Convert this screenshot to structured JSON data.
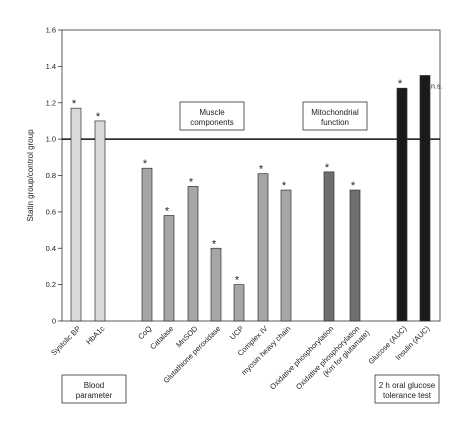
{
  "chart_data": {
    "type": "bar",
    "ylabel": "Statin group/control group",
    "ylim": [
      0,
      1.6
    ],
    "yticks": [
      "0",
      "0.2",
      "0.4",
      "0.6",
      "0.8",
      "1.0",
      "1.2",
      "1.4",
      "1.6"
    ],
    "reference_line": 1.0,
    "categories": [
      {
        "label": "Systolic BP",
        "value": 1.17,
        "mark": "*",
        "color": "#d9d9d9"
      },
      {
        "label": "HbA1c",
        "value": 1.1,
        "mark": "*",
        "color": "#d9d9d9"
      },
      {
        "label": "CoQ",
        "value": 0.84,
        "mark": "*",
        "color": "#a6a6a6"
      },
      {
        "label": "Catalase",
        "value": 0.58,
        "mark": "*",
        "color": "#a6a6a6"
      },
      {
        "label": "MnSOD",
        "value": 0.74,
        "mark": "*",
        "color": "#a6a6a6"
      },
      {
        "label": "Glutathione peroxidase",
        "value": 0.4,
        "mark": "*",
        "color": "#a6a6a6"
      },
      {
        "label": "UCP",
        "value": 0.2,
        "mark": "*",
        "color": "#a6a6a6"
      },
      {
        "label": "Complex IV",
        "value": 0.81,
        "mark": "*",
        "color": "#a6a6a6"
      },
      {
        "label": "myosin heavy chain",
        "value": 0.72,
        "mark": "*",
        "color": "#a6a6a6"
      },
      {
        "label": "Oxidative phosphorylation",
        "value": 0.82,
        "mark": "*",
        "color": "#6e6e6e"
      },
      {
        "label": "Oxidative phosphorylation (Km for glutamate)",
        "value": 0.72,
        "mark": "*",
        "color": "#6e6e6e"
      },
      {
        "label": "Glucose (AUC)",
        "value": 1.28,
        "mark": "*",
        "color": "#1a1a1a"
      },
      {
        "label": "Insulin (AUC)",
        "value": 1.35,
        "mark": "n.s.",
        "color": "#1a1a1a"
      }
    ],
    "annotations": {
      "muscle": [
        "Muscle",
        "components"
      ],
      "mito": [
        "Mitochondrial",
        "function"
      ],
      "blood": [
        "Blood",
        "parameter"
      ],
      "glucose": [
        "2 h oral glucose",
        "tolerance test"
      ]
    }
  }
}
